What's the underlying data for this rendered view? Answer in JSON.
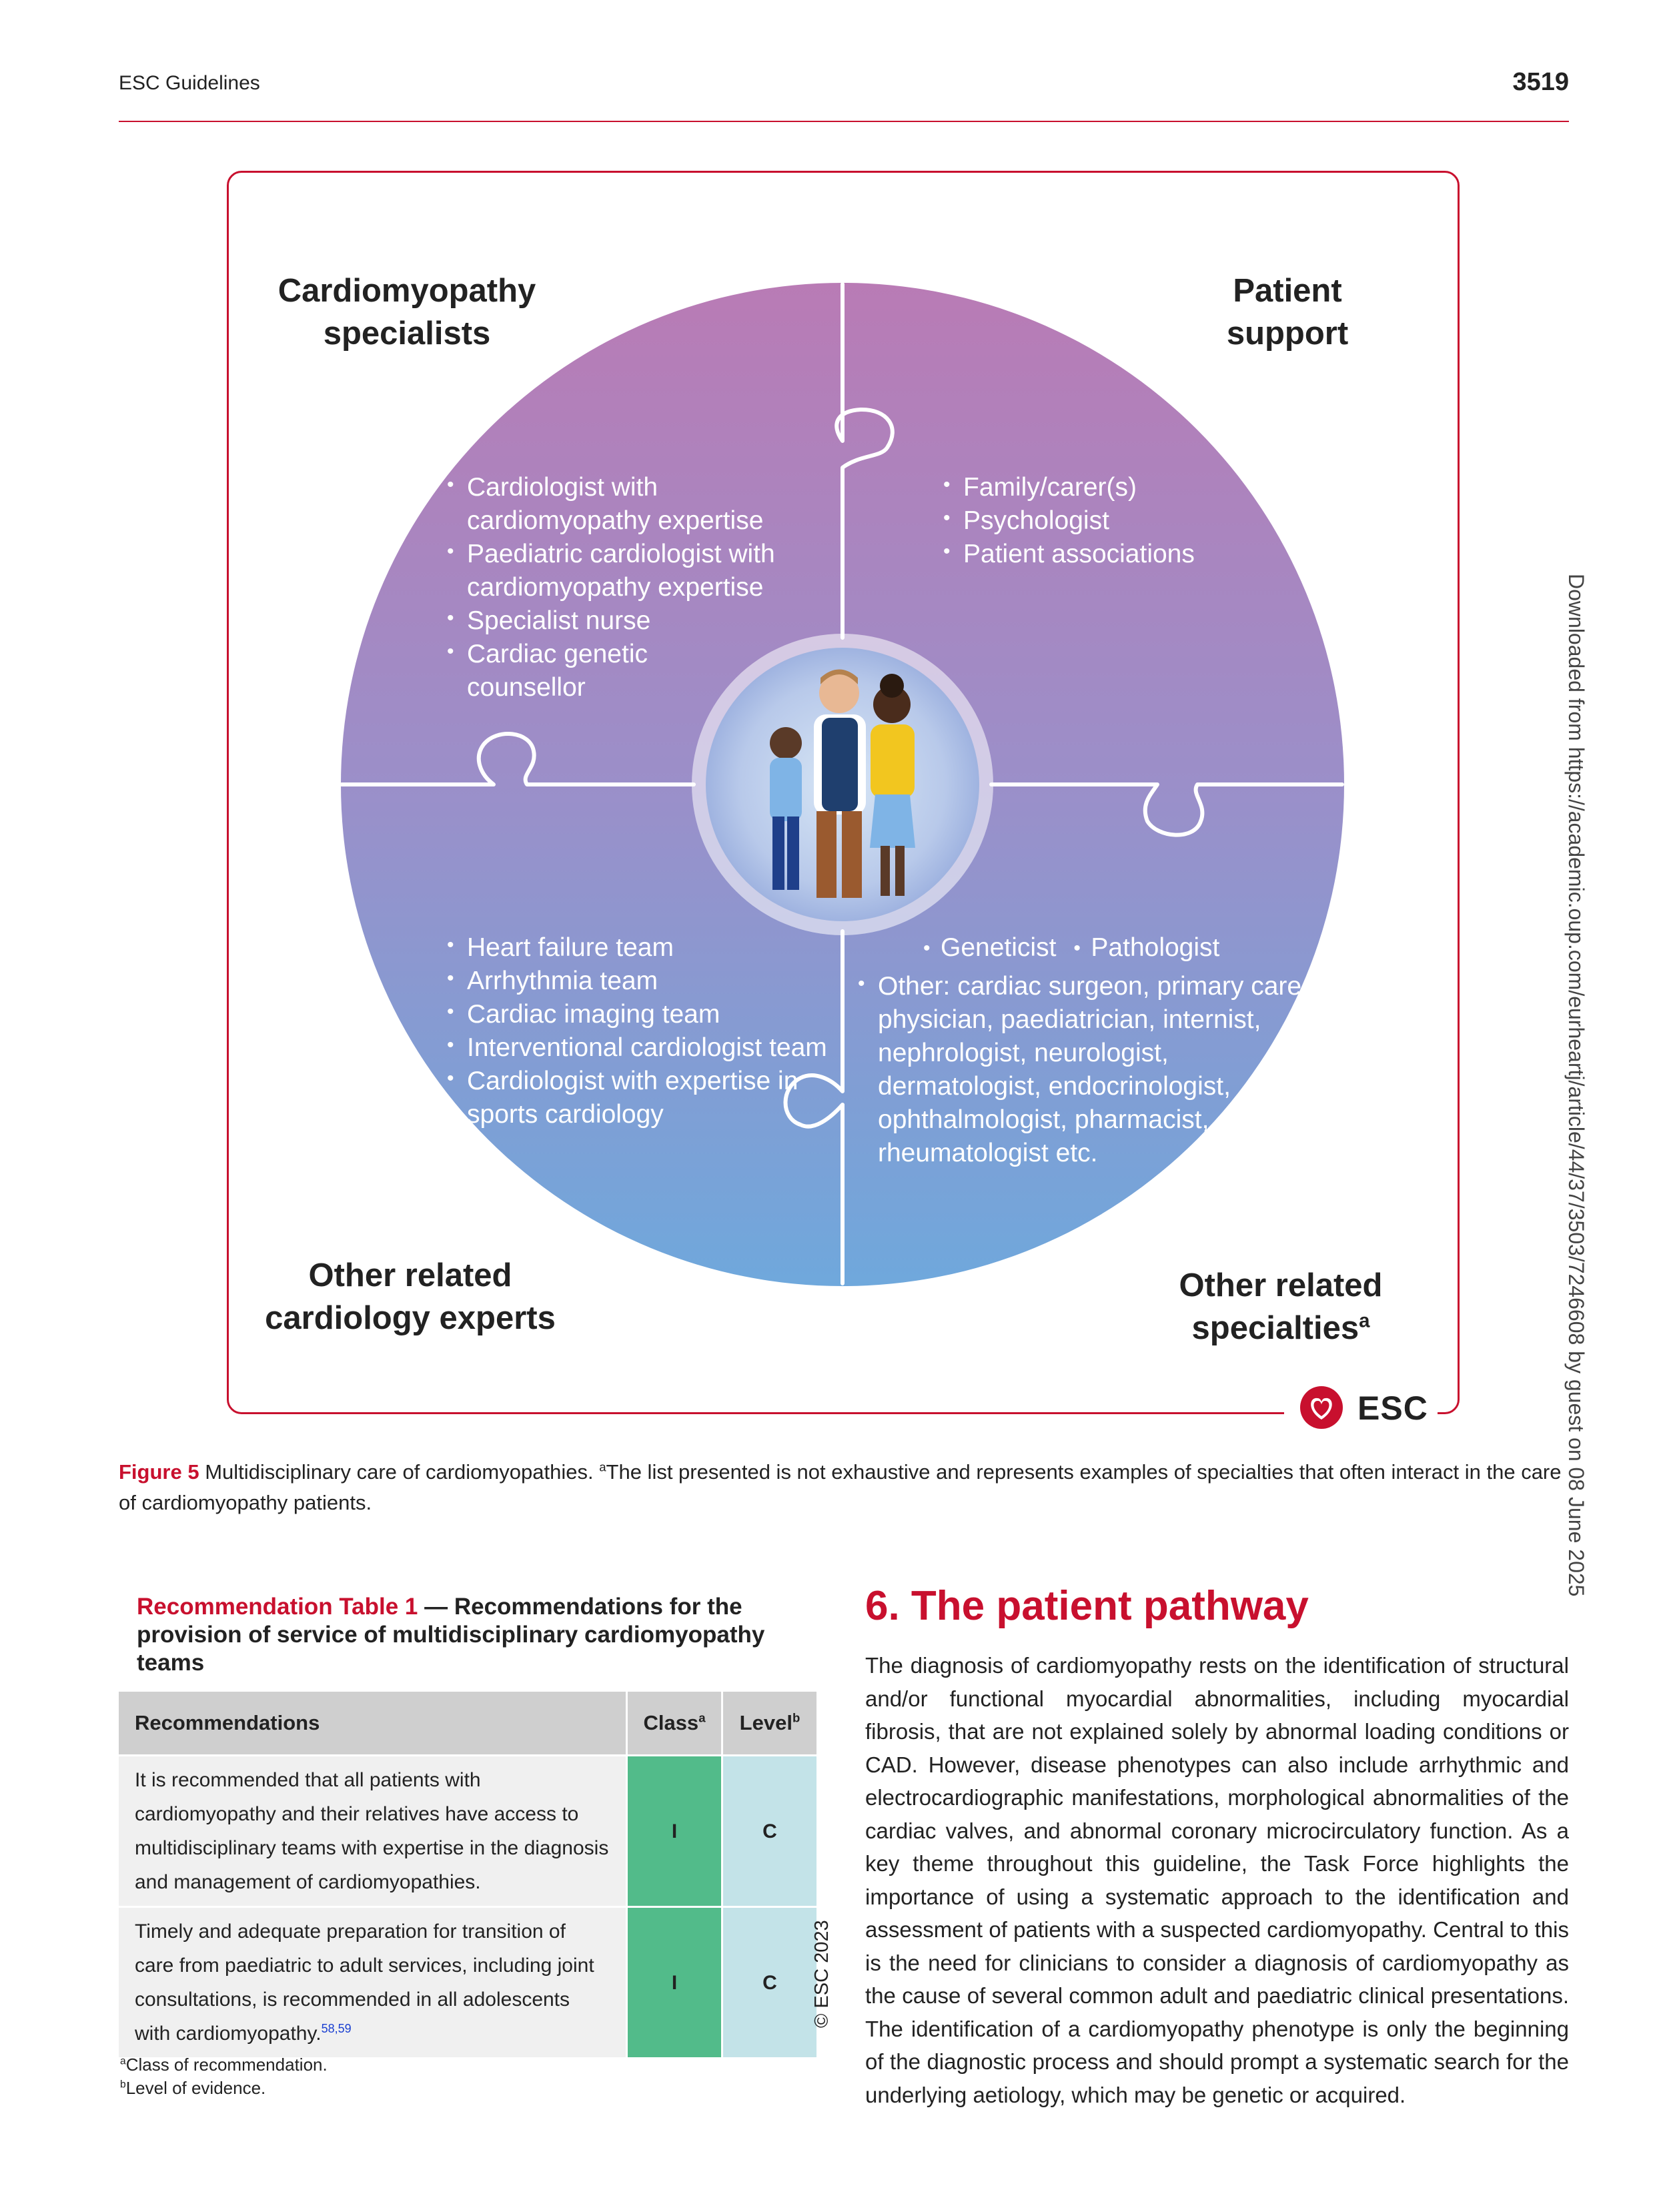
{
  "header": {
    "running_head": "ESC Guidelines",
    "page_number": "3519"
  },
  "figure": {
    "quadrants": {
      "top_left": {
        "title_lines": [
          "Cardiomyopathy",
          "specialists"
        ],
        "items": [
          "Cardiologist with cardiomyopathy expertise",
          "Paediatric cardiologist with cardiomyopathy expertise",
          "Specialist nurse",
          "Cardiac genetic counsellor"
        ]
      },
      "top_right": {
        "title_lines": [
          "Patient",
          "support"
        ],
        "items": [
          "Family/carer(s)",
          "Psychologist",
          "Patient associations"
        ]
      },
      "bottom_left": {
        "title_lines": [
          "Other related",
          "cardiology experts"
        ],
        "items": [
          "Heart failure team",
          "Arrhythmia team",
          "Cardiac imaging team",
          "Interventional cardiologist team",
          "Cardiologist with expertise in sports cardiology"
        ]
      },
      "bottom_right": {
        "title_line1": "Other related",
        "title_line2": "specialties",
        "title_sup": "a",
        "inline_items": [
          "Geneticist",
          "Pathologist"
        ],
        "other_item": "Other: cardiac surgeon, primary care physician, paediatrician, internist, nephrologist, neurologist, dermatologist, endocrinologist, ophthalmologist, pharmacist, rheumatologist etc."
      }
    },
    "logo_text": "ESC",
    "colors": {
      "frame": "#c8102e",
      "circle_top": "#b97bb5",
      "circle_bottom": "#6fa8dc"
    }
  },
  "caption": {
    "label": "Figure 5",
    "text": " Multidisciplinary care of cardiomyopathies. ",
    "sup": "a",
    "note": "The list presented is not exhaustive and represents examples of specialties that often interact in the care of cardiomyopathy patients."
  },
  "recommendation_table": {
    "title_red": "Recommendation Table 1",
    "title_rest": " — Recommendations for the provision of service of multidisciplinary cardiomyopathy teams",
    "headers": {
      "recommendations": "Recommendations",
      "class": "Class",
      "class_sup": "a",
      "level": "Level",
      "level_sup": "b"
    },
    "rows": [
      {
        "text": "It is recommended that all patients with cardiomyopathy and their relatives have access to multidisciplinary teams with expertise in the diagnosis and management of cardiomyopathies.",
        "refs": "",
        "class": "I",
        "level": "C"
      },
      {
        "text": "Timely and adequate preparation for transition of care from paediatric to adult services, including joint consultations, is recommended in all adolescents with cardiomyopathy.",
        "refs": "58,59",
        "class": "I",
        "level": "C"
      }
    ],
    "copyright": "© ESC 2023",
    "footnotes": {
      "a_sup": "a",
      "a": "Class of recommendation.",
      "b_sup": "b",
      "b": "Level of evidence."
    }
  },
  "section": {
    "title": "6. The patient pathway",
    "body": "The diagnosis of cardiomyopathy rests on the identification of structural and/or functional myocardial abnormalities, including myocardial fibrosis, that are not explained solely by abnormal loading conditions or CAD. However, disease phenotypes can also include arrhythmic and electrocardiographic manifestations, morphological abnormalities of the cardiac valves, and abnormal coronary microcirculatory function. As a key theme throughout this guideline, the Task Force highlights the importance of using a systematic approach to the identification and assessment of patients with a suspected cardiomyopathy. Central to this is the need for clinicians to consider a diagnosis of cardiomyopathy as the cause of several common adult and paediatric clinical presentations. The identification of a cardiomyopathy phenotype is only the beginning of the diagnostic process and should prompt a systematic search for the underlying aetiology, which may be genetic or acquired."
  },
  "side_note": "Downloaded from https://academic.oup.com/eurheartj/article/44/37/3503/7246608 by guest on 08 June 2025"
}
